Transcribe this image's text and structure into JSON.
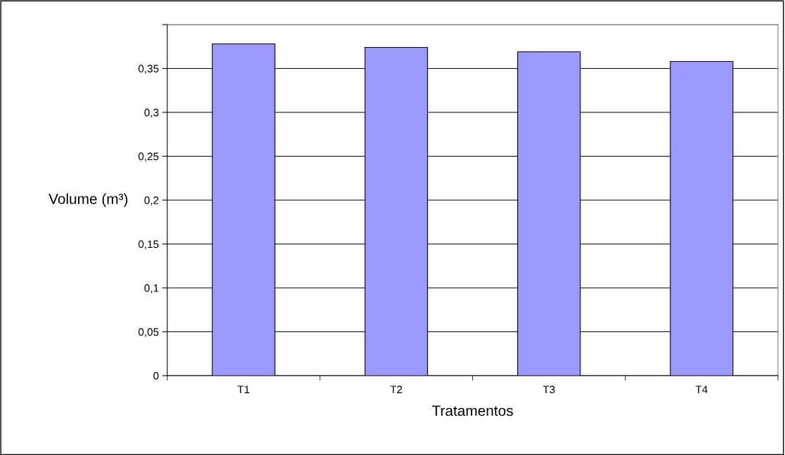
{
  "chart_data": {
    "type": "bar",
    "xlabel": "Tratamentos",
    "ylabel": "Volume (m³)",
    "categories": [
      "T1",
      "T2",
      "T3",
      "T4"
    ],
    "series": [
      {
        "color": "#9999ff",
        "values": [
          0.378,
          0.374,
          0.369,
          0.358
        ]
      }
    ],
    "ylim": [
      0,
      0.4
    ],
    "yticks": [
      0,
      {
        "value": 0.05,
        "label": "0,05"
      },
      {
        "value": 0.1,
        "label": "0,1"
      },
      {
        "value": 0.15,
        "label": "0,15"
      },
      {
        "value": 0.2,
        "label": "0,2"
      },
      {
        "value": 0.25,
        "label": "0,25"
      },
      {
        "value": 0.3,
        "label": "0,3"
      },
      {
        "value": 0.35,
        "label": "0,35"
      },
      {
        "value": 0.4,
        "label": null
      }
    ],
    "grid": "y",
    "legend": false
  }
}
